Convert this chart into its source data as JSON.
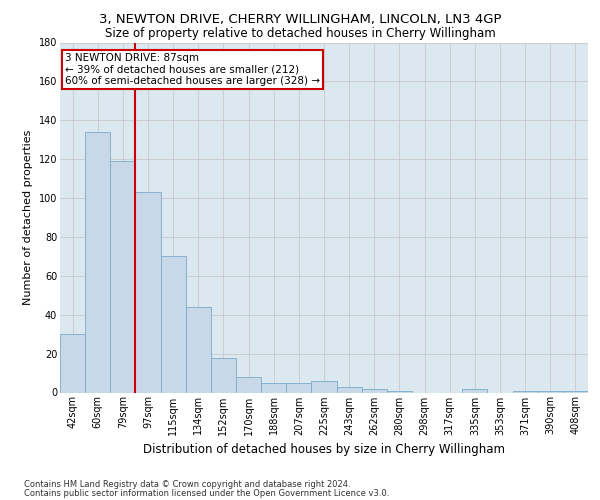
{
  "title1": "3, NEWTON DRIVE, CHERRY WILLINGHAM, LINCOLN, LN3 4GP",
  "title2": "Size of property relative to detached houses in Cherry Willingham",
  "xlabel": "Distribution of detached houses by size in Cherry Willingham",
  "ylabel": "Number of detached properties",
  "footer1": "Contains HM Land Registry data © Crown copyright and database right 2024.",
  "footer2": "Contains public sector information licensed under the Open Government Licence v3.0.",
  "bin_labels": [
    "42sqm",
    "60sqm",
    "79sqm",
    "97sqm",
    "115sqm",
    "134sqm",
    "152sqm",
    "170sqm",
    "188sqm",
    "207sqm",
    "225sqm",
    "243sqm",
    "262sqm",
    "280sqm",
    "298sqm",
    "317sqm",
    "335sqm",
    "353sqm",
    "371sqm",
    "390sqm",
    "408sqm"
  ],
  "bar_values": [
    30,
    134,
    119,
    103,
    70,
    44,
    18,
    8,
    5,
    5,
    6,
    3,
    2,
    1,
    0,
    0,
    2,
    0,
    1,
    1,
    1
  ],
  "bar_color": "#c8d8e8",
  "bar_edge_color": "#7aaac8",
  "red_line_x": 2.5,
  "annotation_line1": "3 NEWTON DRIVE: 87sqm",
  "annotation_line2": "← 39% of detached houses are smaller (212)",
  "annotation_line3": "60% of semi-detached houses are larger (328) →",
  "annotation_box_color": "#ffffff",
  "annotation_box_edge": "#cc0000",
  "ylim": [
    0,
    180
  ],
  "yticks": [
    0,
    20,
    40,
    60,
    80,
    100,
    120,
    140,
    160,
    180
  ],
  "grid_color": "#c8c8c8",
  "plot_bg_color": "#dce8f0",
  "title1_fontsize": 9.5,
  "title2_fontsize": 8.5,
  "xlabel_fontsize": 8.5,
  "ylabel_fontsize": 8,
  "tick_fontsize": 7,
  "footer_fontsize": 6,
  "ann_fontsize": 7.5
}
